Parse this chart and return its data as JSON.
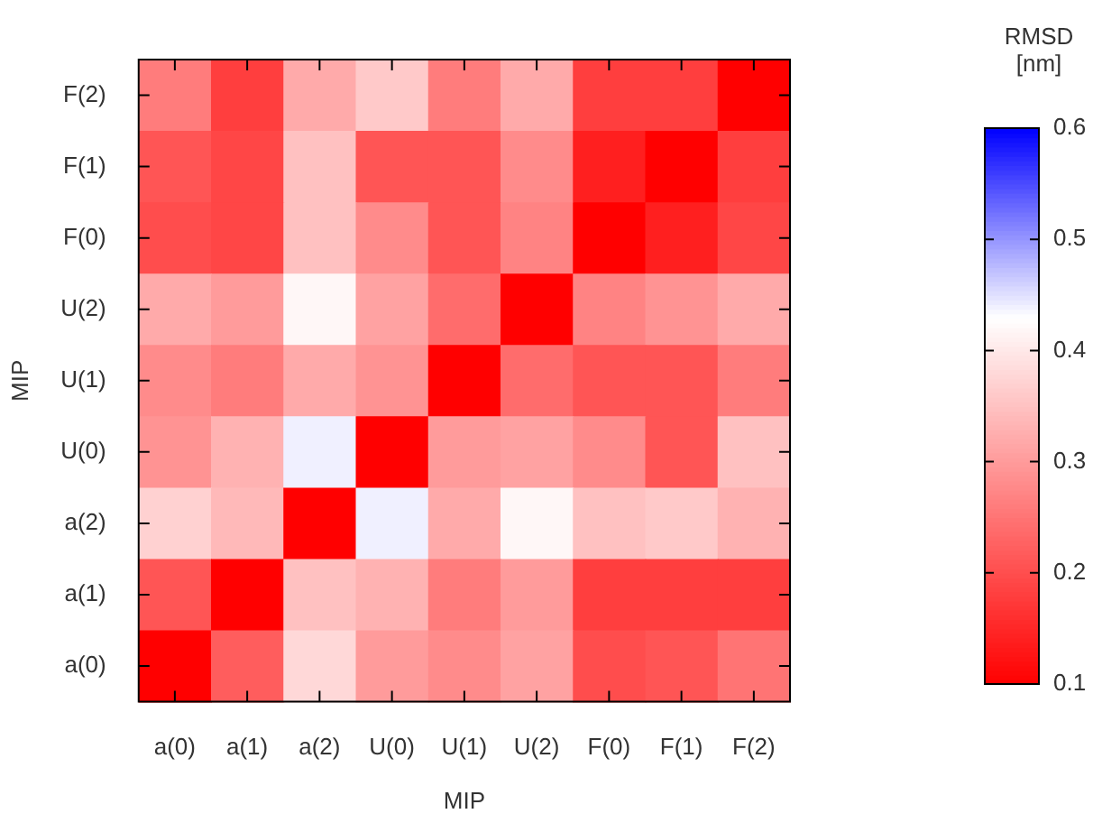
{
  "chart_data": {
    "type": "heatmap",
    "xlabel": "MIP",
    "ylabel": "MIP",
    "clabel": "RMSD [nm]",
    "categories": [
      "a(0)",
      "a(1)",
      "a(2)",
      "U(0)",
      "U(1)",
      "U(2)",
      "F(0)",
      "F(1)",
      "F(2)"
    ],
    "y_categories": [
      "F(2)",
      "F(1)",
      "F(0)",
      "U(2)",
      "U(1)",
      "U(0)",
      "a(2)",
      "a(1)",
      "a(0)"
    ],
    "cells": [
      [
        0.26,
        0.18,
        0.32,
        0.36,
        0.26,
        0.32,
        0.18,
        0.18,
        0.1
      ],
      [
        0.21,
        0.19,
        0.35,
        0.21,
        0.21,
        0.28,
        0.14,
        0.1,
        0.18
      ],
      [
        0.2,
        0.19,
        0.35,
        0.28,
        0.21,
        0.27,
        0.1,
        0.14,
        0.19
      ],
      [
        0.32,
        0.3,
        0.42,
        0.31,
        0.24,
        0.1,
        0.27,
        0.29,
        0.32
      ],
      [
        0.28,
        0.26,
        0.32,
        0.29,
        0.1,
        0.24,
        0.21,
        0.21,
        0.26
      ],
      [
        0.29,
        0.33,
        0.44,
        0.1,
        0.3,
        0.31,
        0.28,
        0.21,
        0.35
      ],
      [
        0.37,
        0.34,
        0.1,
        0.44,
        0.32,
        0.42,
        0.35,
        0.36,
        0.33
      ],
      [
        0.21,
        0.1,
        0.35,
        0.33,
        0.26,
        0.3,
        0.18,
        0.18,
        0.18
      ],
      [
        0.1,
        0.22,
        0.38,
        0.3,
        0.28,
        0.31,
        0.2,
        0.21,
        0.25
      ]
    ],
    "clim": [
      0.1,
      0.6
    ],
    "cticks": [
      0.1,
      0.2,
      0.3,
      0.4,
      0.5,
      0.6
    ]
  }
}
